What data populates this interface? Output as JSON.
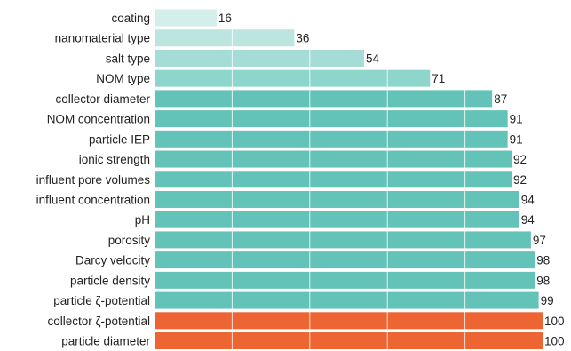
{
  "chart_data": {
    "type": "bar",
    "orientation": "horizontal",
    "categories": [
      "coating",
      "nanomaterial type",
      "salt type",
      "NOM type",
      "collector diameter",
      "NOM concentration",
      "particle IEP",
      "ionic strength",
      "influent pore volumes",
      "influent concentration",
      "pH",
      "porosity",
      "Darcy velocity",
      "particle density",
      "particle ζ-potential",
      "collector ζ-potential",
      "particle diameter"
    ],
    "values": [
      16,
      36,
      54,
      71,
      87,
      91,
      91,
      92,
      92,
      94,
      94,
      97,
      98,
      98,
      99,
      100,
      100
    ],
    "bar_colors": [
      "#d3eeeb",
      "#bce5e0",
      "#a5ddd6",
      "#8ed5cc",
      "#64c3b8",
      "#64c3b8",
      "#64c3b8",
      "#64c3b8",
      "#64c3b8",
      "#64c3b8",
      "#64c3b8",
      "#64c3b8",
      "#64c3b8",
      "#64c3b8",
      "#64c3b8",
      "#ec6533",
      "#ec6533"
    ],
    "gridline_color": "#ffffff",
    "xlim": [
      0,
      100
    ],
    "grid": true,
    "title": "",
    "xlabel": "",
    "ylabel": ""
  }
}
